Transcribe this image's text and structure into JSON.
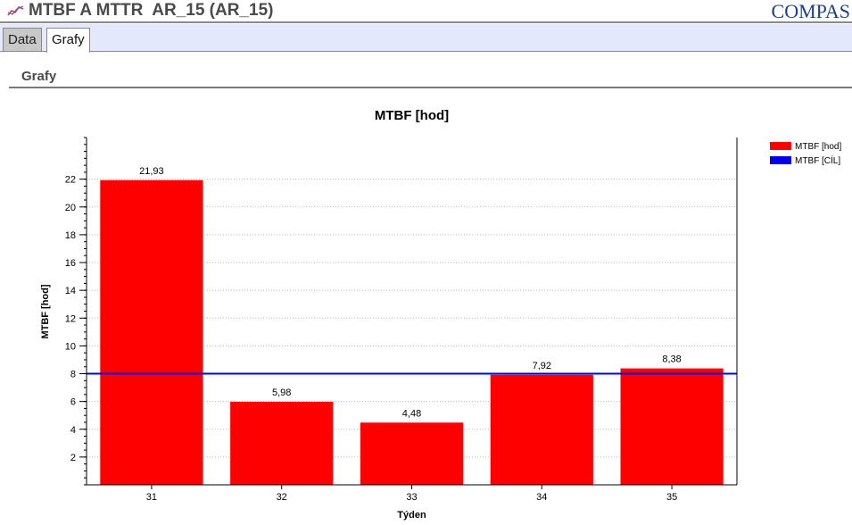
{
  "header": {
    "title": "MTBF A MTTR  AR_15 (AR_15)",
    "logo_text": "COMPAS",
    "icon": "line-chart-icon"
  },
  "tabs": [
    {
      "label": "Data",
      "active": false
    },
    {
      "label": "Grafy",
      "active": true
    }
  ],
  "section": {
    "title": "Grafy"
  },
  "colors": {
    "bar": "#ff0000",
    "target_line": "#0000ee",
    "logo": "#1a3f8f"
  },
  "chart_data": {
    "type": "bar",
    "title": "MTBF [hod]",
    "xlabel": "Týden",
    "ylabel": "MTBF [hod]",
    "categories": [
      "31",
      "32",
      "33",
      "34",
      "35"
    ],
    "series": [
      {
        "name": "MTBF [hod]",
        "type": "bar",
        "values": [
          21.93,
          5.98,
          4.48,
          7.92,
          8.38
        ],
        "value_labels": [
          "21,93",
          "5,98",
          "4,48",
          "7,92",
          "8,38"
        ]
      },
      {
        "name": "MTBF [CÍL]",
        "type": "line",
        "values": [
          8,
          8,
          8,
          8,
          8
        ]
      }
    ],
    "yticks": [
      2,
      4,
      6,
      8,
      10,
      12,
      14,
      16,
      18,
      20,
      22
    ],
    "ylim": [
      0,
      25
    ],
    "grid": true,
    "legend": "top-right"
  }
}
